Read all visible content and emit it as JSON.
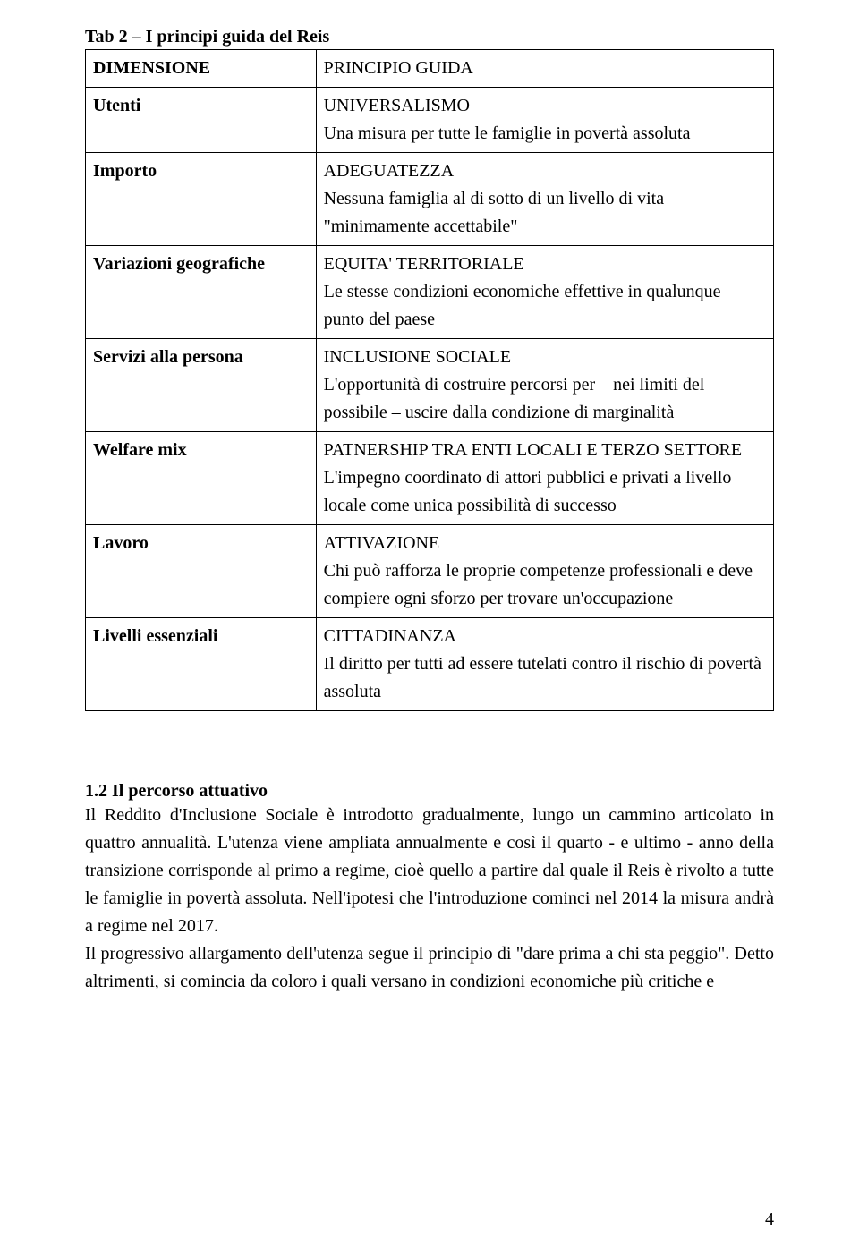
{
  "table_caption": "Tab 2 – I principi guida del Reis",
  "header": {
    "left": "DIMENSIONE",
    "right": "PRINCIPIO GUIDA"
  },
  "rows": [
    {
      "label": "Utenti",
      "title": "UNIVERSALISMO",
      "desc": "Una misura per tutte le famiglie in povertà assoluta"
    },
    {
      "label": "Importo",
      "title": "ADEGUATEZZA",
      "desc": "Nessuna famiglia al di sotto di un livello di vita \"minimamente accettabile\""
    },
    {
      "label": "Variazioni geografiche",
      "title": "EQUITA' TERRITORIALE",
      "desc": "Le stesse condizioni economiche effettive in qualunque punto del paese"
    },
    {
      "label": "Servizi alla persona",
      "title": "INCLUSIONE SOCIALE",
      "desc": "L'opportunità di costruire percorsi per – nei limiti del possibile – uscire dalla condizione di marginalità"
    },
    {
      "label": "Welfare mix",
      "title": "PATNERSHIP TRA ENTI LOCALI E TERZO SETTORE",
      "desc": "L'impegno coordinato di attori pubblici e privati a livello locale come unica possibilità di successo"
    },
    {
      "label": "Lavoro",
      "title": "ATTIVAZIONE",
      "desc": "Chi può rafforza le proprie competenze professionali e deve compiere ogni sforzo per trovare un'occupazione"
    },
    {
      "label": "Livelli essenziali",
      "title": "CITTADINANZA",
      "desc": "Il diritto per tutti ad essere tutelati contro il rischio di povertà assoluta"
    }
  ],
  "section": {
    "heading": "1.2 Il percorso attuativo",
    "p1": "Il Reddito d'Inclusione Sociale è introdotto gradualmente, lungo un cammino articolato in quattro annualità. L'utenza viene ampliata annualmente e così il quarto - e ultimo - anno della transizione corrisponde al primo a regime, cioè quello a partire dal quale il Reis è rivolto a tutte le famiglie in povertà assoluta. Nell'ipotesi che l'introduzione cominci nel 2014 la misura andrà a regime nel 2017.",
    "p2": "Il progressivo allargamento dell'utenza segue il principio di \"dare prima a chi sta peggio\". Detto altrimenti, si comincia da coloro i quali versano in condizioni economiche più critiche e"
  },
  "page_number": "4"
}
